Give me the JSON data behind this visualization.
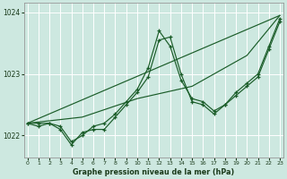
{
  "xlabel": "Graphe pression niveau de la mer (hPa)",
  "bg_color": "#cde8e0",
  "grid_color": "#b0d4cc",
  "line_color": "#1a5c28",
  "series": [
    {
      "x": [
        0,
        23
      ],
      "y": [
        1022.2,
        1023.95
      ]
    },
    {
      "x": [
        0,
        5,
        10,
        15,
        20,
        23
      ],
      "y": [
        1022.2,
        1022.3,
        1022.6,
        1022.8,
        1023.3,
        1023.95
      ]
    },
    {
      "x": [
        0,
        1,
        2,
        3,
        4,
        5,
        6,
        7,
        8,
        9,
        10,
        11,
        12,
        13,
        14,
        15,
        16,
        17,
        18,
        19,
        20,
        21,
        22,
        23
      ],
      "y": [
        1022.2,
        1022.2,
        1022.2,
        1022.15,
        1021.9,
        1022.0,
        1022.15,
        1022.2,
        1022.35,
        1022.55,
        1022.75,
        1023.1,
        1023.7,
        1023.45,
        1022.9,
        1022.6,
        1022.55,
        1022.4,
        1022.5,
        1022.7,
        1022.85,
        1023.0,
        1023.45,
        1023.9
      ]
    },
    {
      "x": [
        0,
        1,
        2,
        3,
        4,
        5,
        6,
        7,
        8,
        9,
        10,
        11,
        12,
        13,
        14,
        15,
        16,
        17,
        18,
        19,
        20,
        21,
        22,
        23
      ],
      "y": [
        1022.2,
        1022.15,
        1022.2,
        1022.1,
        1021.85,
        1022.05,
        1022.1,
        1022.1,
        1022.3,
        1022.5,
        1022.7,
        1022.95,
        1023.55,
        1023.6,
        1023.0,
        1022.55,
        1022.5,
        1022.35,
        1022.5,
        1022.65,
        1022.8,
        1022.95,
        1023.4,
        1023.85
      ]
    }
  ],
  "ylim": [
    1021.65,
    1024.15
  ],
  "xlim": [
    -0.3,
    23.3
  ],
  "yticks": [
    1022,
    1023,
    1024
  ],
  "xticks": [
    0,
    1,
    2,
    3,
    4,
    5,
    6,
    7,
    8,
    9,
    10,
    11,
    12,
    13,
    14,
    15,
    16,
    17,
    18,
    19,
    20,
    21,
    22,
    23
  ],
  "xtick_labels": [
    "0",
    "1",
    "2",
    "3",
    "4",
    "5",
    "6",
    "7",
    "8",
    "9",
    "10",
    "11",
    "12",
    "13",
    "14",
    "15",
    "16",
    "17",
    "18",
    "19",
    "20",
    "21",
    "22",
    "23"
  ]
}
